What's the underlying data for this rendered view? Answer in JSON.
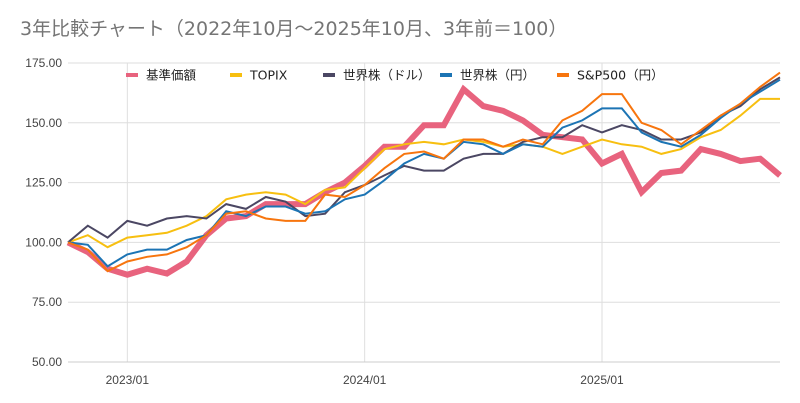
{
  "title": "3年比較チャート（2022年10月〜2025年10月、3年前＝100）",
  "chart_data": {
    "type": "line",
    "title": "3年比較チャート（2022年10月〜2025年10月、3年前＝100）",
    "xlabel": "",
    "ylabel": "",
    "ylim": [
      50,
      175
    ],
    "y_ticks": [
      "50.00",
      "75.00",
      "100.00",
      "125.00",
      "150.00",
      "175.00"
    ],
    "y_tick_values": [
      50,
      75,
      100,
      125,
      150,
      175
    ],
    "x_tick_labels": [
      "2023/01",
      "2024/01",
      "2025/01"
    ],
    "x_tick_indices": [
      3,
      15,
      27
    ],
    "x": [
      "2022/10",
      "2022/11",
      "2022/12",
      "2023/01",
      "2023/02",
      "2023/03",
      "2023/04",
      "2023/05",
      "2023/06",
      "2023/07",
      "2023/08",
      "2023/09",
      "2023/10",
      "2023/11",
      "2023/12",
      "2024/01",
      "2024/02",
      "2024/03",
      "2024/04",
      "2024/05",
      "2024/06",
      "2024/07",
      "2024/08",
      "2024/09",
      "2024/10",
      "2024/11",
      "2024/12",
      "2025/01",
      "2025/02",
      "2025/03",
      "2025/04",
      "2025/05",
      "2025/06",
      "2025/07",
      "2025/08",
      "2025/09",
      "2025/10"
    ],
    "grid": true,
    "legend_position": "top",
    "series": [
      {
        "name": "基準価額",
        "color": "#e8637e",
        "width": 6,
        "values": [
          100,
          96,
          89,
          86.5,
          89,
          87,
          92,
          103,
          110,
          111,
          116,
          116,
          116,
          121,
          125,
          132,
          140,
          140,
          149,
          149,
          164,
          157,
          155,
          151,
          145,
          144,
          143,
          133,
          137,
          121,
          129,
          130,
          139,
          137,
          134,
          135,
          128
        ]
      },
      {
        "name": "TOPIX",
        "color": "#f7bf10",
        "width": 2,
        "values": [
          100,
          103,
          98,
          102,
          103,
          104,
          107,
          111,
          118,
          120,
          121,
          120,
          116,
          122,
          123,
          131,
          139,
          141,
          142,
          141,
          143,
          142,
          140,
          141,
          140,
          137,
          140,
          143,
          141,
          140,
          137,
          139,
          144,
          147,
          153,
          160,
          160
        ]
      },
      {
        "name": "世界株（ドル）",
        "color": "#4b4763",
        "width": 2,
        "values": [
          100,
          107,
          102,
          109,
          107,
          110,
          111,
          110,
          116,
          114,
          119,
          117,
          111,
          112,
          121,
          124,
          128,
          132,
          130,
          130,
          135,
          137,
          137,
          142,
          144,
          144,
          149,
          146,
          149,
          147,
          143,
          143,
          146,
          153,
          157,
          164,
          169
        ]
      },
      {
        "name": "世界株（円）",
        "color": "#1c74b4",
        "width": 2,
        "values": [
          100,
          99,
          90,
          95,
          97,
          97,
          101,
          103,
          113,
          111,
          115,
          115,
          112,
          113,
          118,
          120,
          126,
          133,
          137,
          135,
          142,
          141,
          137,
          141,
          140,
          148,
          151,
          156,
          156,
          146,
          142,
          140,
          145,
          152,
          158,
          163,
          168
        ]
      },
      {
        "name": "S&P500（円）",
        "color": "#f7750e",
        "width": 2,
        "values": [
          100,
          97,
          88,
          92,
          94,
          95,
          98,
          103,
          112,
          113,
          110,
          109,
          109,
          120,
          119,
          124,
          131,
          137,
          138,
          135,
          143,
          143,
          140,
          143,
          141,
          151,
          155,
          162,
          162,
          150,
          147,
          141,
          147,
          153,
          158,
          165,
          171
        ]
      }
    ]
  }
}
